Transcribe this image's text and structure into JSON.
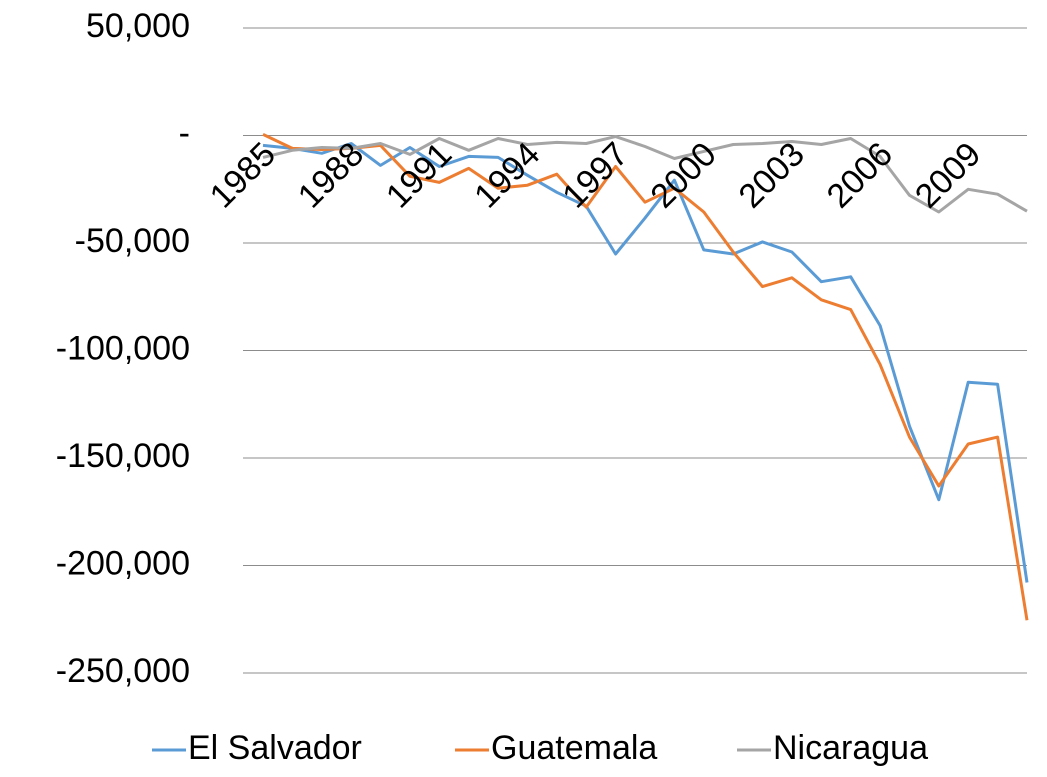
{
  "chart_data": {
    "type": "line",
    "categories": [
      "1985",
      null,
      null,
      "1988",
      null,
      null,
      "1991",
      null,
      null,
      "1994",
      null,
      null,
      "1997",
      null,
      null,
      "2000",
      null,
      null,
      "2003",
      null,
      null,
      "2006",
      null,
      null,
      "2009",
      null,
      null
    ],
    "series": [
      {
        "name": "El Salvador",
        "color": "#5b9bd5",
        "values": [
          -4600,
          -6000,
          -8300,
          -3700,
          -13900,
          -5600,
          -14400,
          -9700,
          -10200,
          -18500,
          -26400,
          -32900,
          -55100,
          -38400,
          -20800,
          -53200,
          -55100,
          -49500,
          -54200,
          -68000,
          -65700,
          -88400,
          -135200,
          -169400,
          -114800,
          -115700,
          -207900
        ]
      },
      {
        "name": "Guatemala",
        "color": "#ed7d31",
        "values": [
          500,
          -6000,
          -6500,
          -6000,
          -4600,
          -19000,
          -21800,
          -15300,
          -24500,
          -23100,
          -18000,
          -33300,
          -14400,
          -31000,
          -24500,
          -35600,
          -54200,
          -70300,
          -66200,
          -76400,
          -81000,
          -106500,
          -140300,
          -163000,
          -143500,
          -140300,
          -225500
        ]
      },
      {
        "name": "Nicaragua",
        "color": "#a5a5a5",
        "values": [
          -10200,
          -6900,
          -5600,
          -6000,
          -3700,
          -8800,
          -1400,
          -6900,
          -1400,
          -4200,
          -3200,
          -3700,
          -500,
          -5100,
          -10700,
          -7400,
          -4200,
          -3700,
          -2800,
          -4200,
          -1400,
          -9700,
          -27800,
          -35600,
          -25000,
          -27300,
          -35200
        ]
      }
    ],
    "ylim": [
      -250000,
      50000
    ],
    "yticks": [
      {
        "value": 50000,
        "label": "50,000"
      },
      {
        "value": 0,
        "label": "-"
      },
      {
        "value": -50000,
        "label": "-50,000"
      },
      {
        "value": -100000,
        "label": "-100,000"
      },
      {
        "value": -150000,
        "label": "-150,000"
      },
      {
        "value": -200000,
        "label": "-200,000"
      },
      {
        "value": -250000,
        "label": "-250,000"
      }
    ],
    "grid": true,
    "legend": "bottom"
  }
}
